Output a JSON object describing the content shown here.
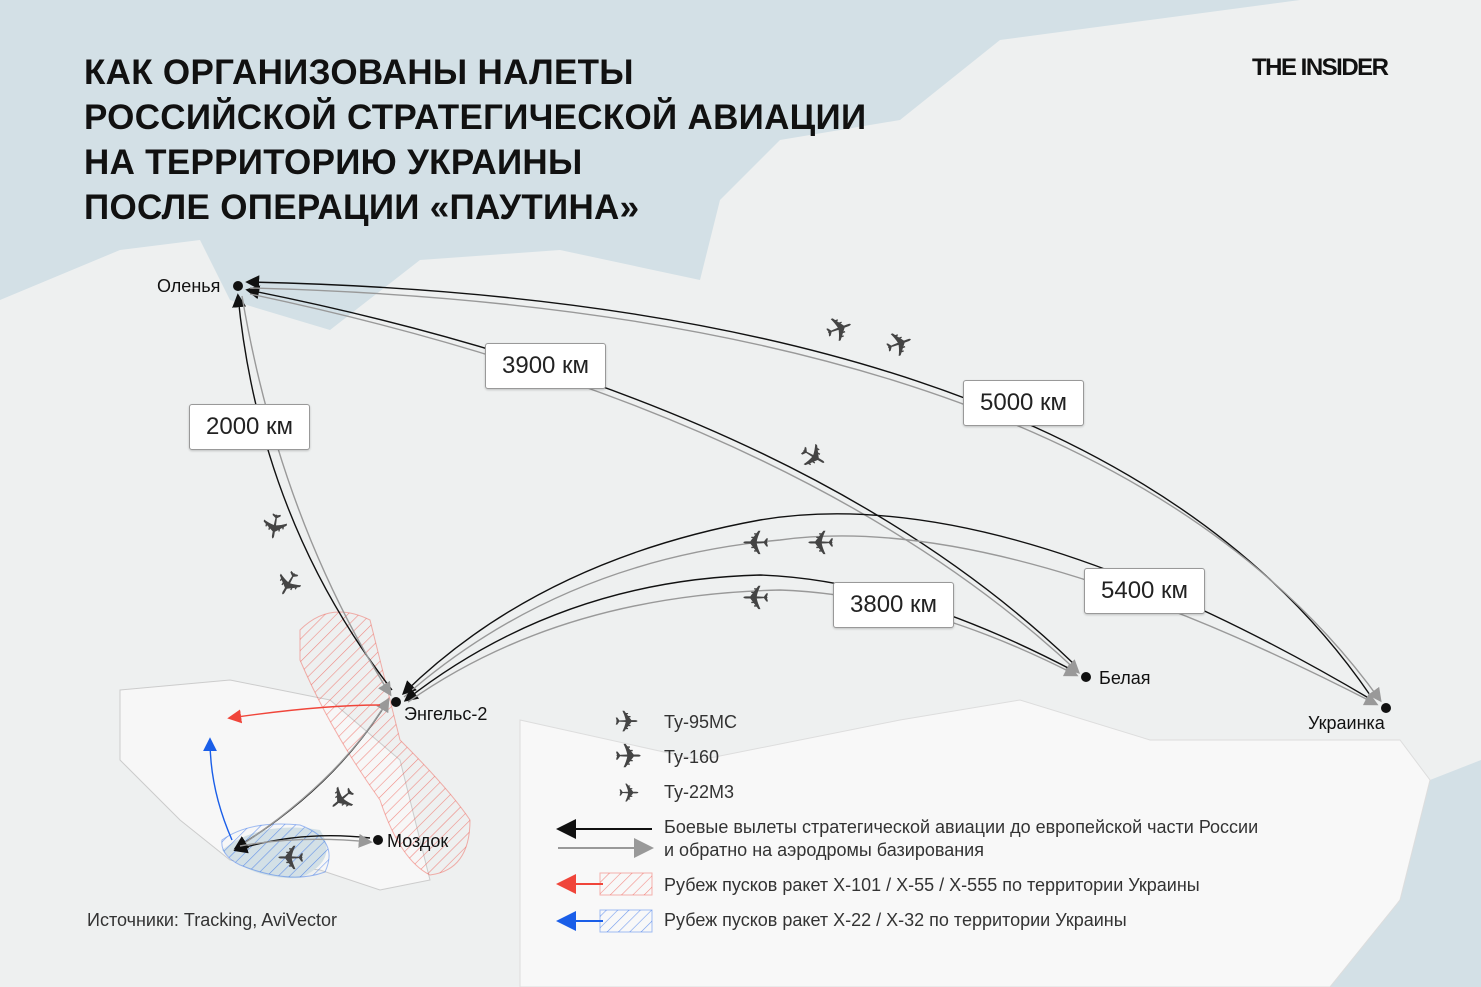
{
  "title": {
    "lines": [
      "КАК ОРГАНИЗОВАНЫ НАЛЕТЫ",
      "РОССИЙСКОЙ СТРАТЕГИЧЕСКОЙ АВИАЦИИ",
      "НА ТЕРРИТОРИЮ УКРАИНЫ",
      "ПОСЛЕ ОПЕРАЦИИ «ПАУТИНА»"
    ]
  },
  "logo": "THE INSIDER",
  "cities": {
    "olenya": "Оленья",
    "engels": "Энгельс-2",
    "belaya": "Белая",
    "ukrainka": "Украинка",
    "mozdok": "Моздок"
  },
  "distances": {
    "olenya_engels": "2000 км",
    "olenya_belaya": "3900 км",
    "olenya_ukrainka": "5000 км",
    "engels_belaya": "3800 км",
    "engels_ukrainka": "5400 км"
  },
  "legend": {
    "aircraft": [
      "Ту-95МС",
      "Ту-160",
      "Ту-22М3"
    ],
    "routes_line1": "Боевые вылеты стратегической авиации до европейской части России",
    "routes_line2": "и обратно на аэродромы базирования",
    "red_zone": "Рубеж пусков ракет Х-101 / Х-55 / Х-555 по территории Украины",
    "blue_zone": "Рубеж пусков ракет Х-22 / Х-32 по территории Украины"
  },
  "source": "Источники: Tracking, AviVector",
  "colors": {
    "sea": "#d3e0e6",
    "land": "#f1f2f2",
    "outbound": "#111111",
    "return": "#999999",
    "red": "#f0453a",
    "blue": "#1a5ee8"
  }
}
